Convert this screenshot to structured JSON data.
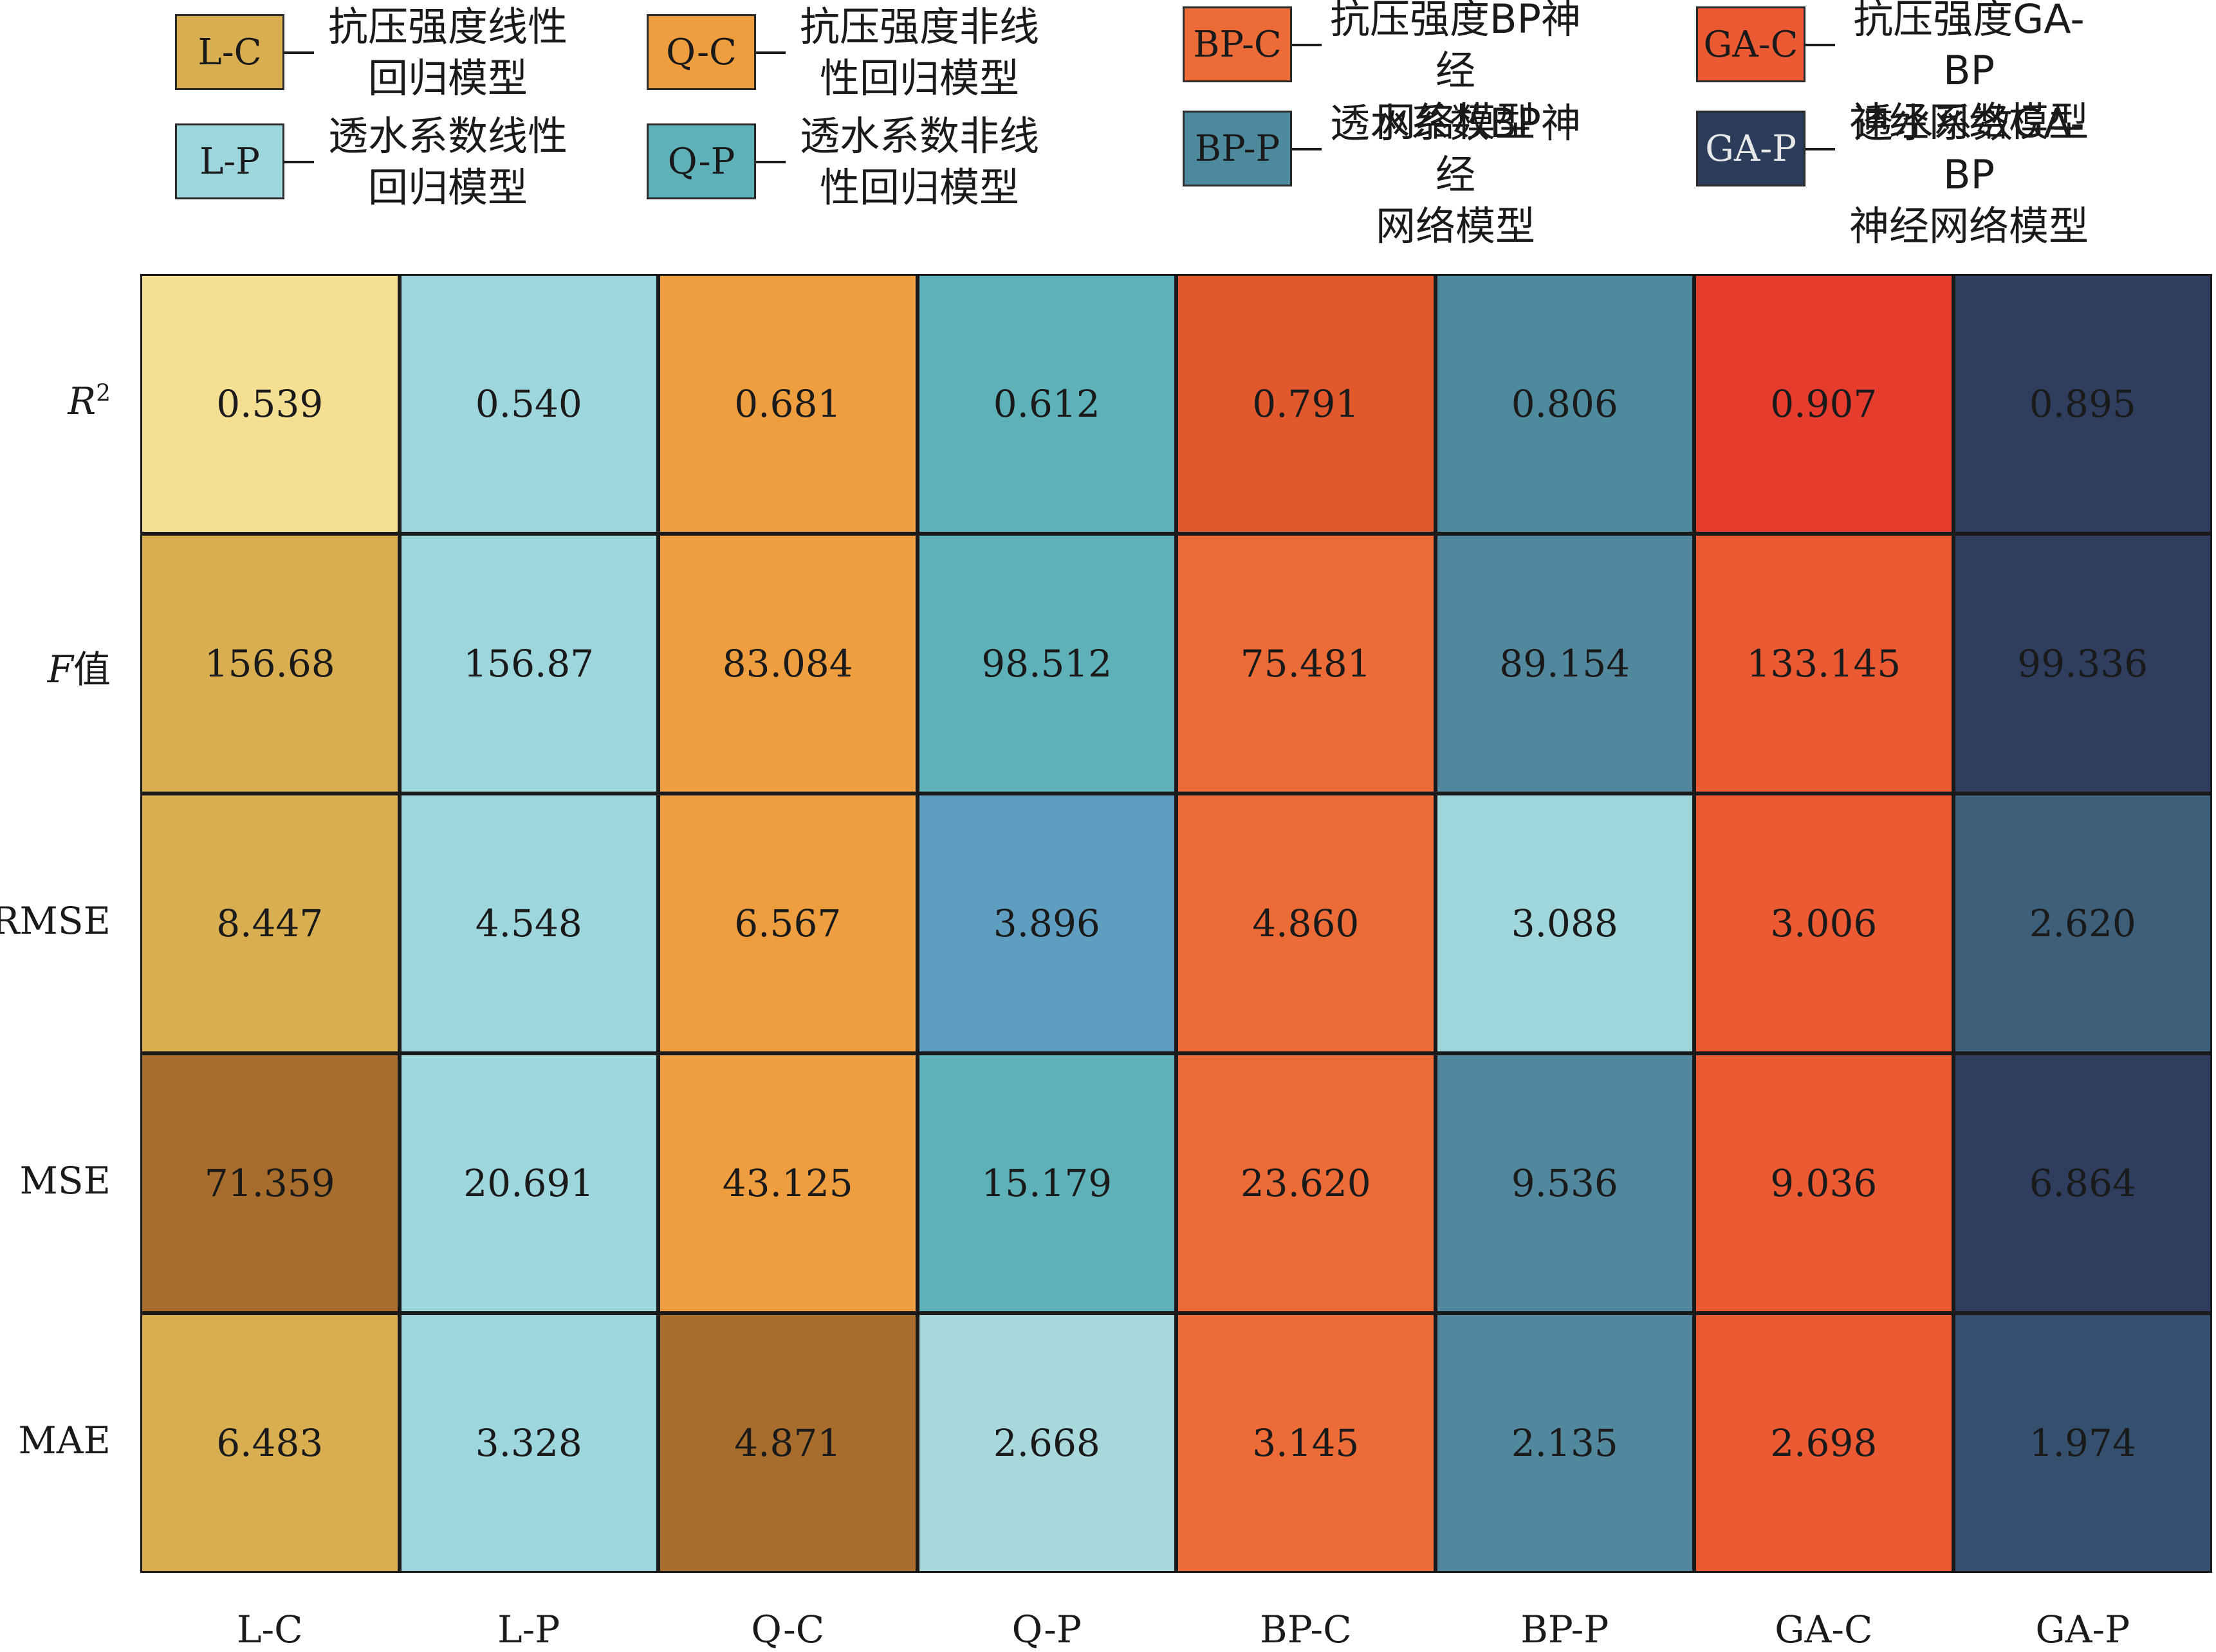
{
  "legend": [
    {
      "code": "L-C",
      "line1": "抗压强度线性",
      "line2": "回归模型",
      "color": "#D9AE50"
    },
    {
      "code": "Q-C",
      "line1": "抗压强度非线",
      "line2": "性回归模型",
      "color": "#EE9E3E"
    },
    {
      "code": "BP-C",
      "line1": "抗压强度BP神经",
      "line2": "网络模型",
      "color": "#EC6B36"
    },
    {
      "code": "GA-C",
      "line1": "抗压强度GA-BP",
      "line2": "神经网络模型",
      "color": "#EB5A33"
    },
    {
      "code": "L-P",
      "line1": "透水系数线性",
      "line2": "回归模型",
      "color": "#9ED6DE"
    },
    {
      "code": "Q-P",
      "line1": "透水系数非线",
      "line2": "性回归模型",
      "color": "#5EB1B8"
    },
    {
      "code": "BP-P",
      "line1": "透水系数BP神经",
      "line2": "网络模型",
      "color": "#4E8A9E"
    },
    {
      "code": "GA-P",
      "line1": "透水系数GA-BP",
      "line2": "神经网络模型",
      "color": "#2C3D5C"
    }
  ],
  "chart_data": {
    "type": "heatmap",
    "columns": [
      "L-C",
      "L-P",
      "Q-C",
      "Q-P",
      "BP-C",
      "BP-P",
      "GA-C",
      "GA-P"
    ],
    "rows": [
      {
        "label_main": "R",
        "label_sup": "2",
        "label_suffix": "",
        "values": [
          "0.539",
          "0.540",
          "0.681",
          "0.612",
          "0.791",
          "0.806",
          "0.907",
          "0.895"
        ]
      },
      {
        "label_main": "F",
        "label_sup": "",
        "label_suffix": "值",
        "values": [
          "156.68",
          "156.87",
          "83.084",
          "98.512",
          "75.481",
          "89.154",
          "133.145",
          "99.336"
        ]
      },
      {
        "label_main": "RMSE",
        "label_sup": "",
        "label_suffix": "",
        "values": [
          "8.447",
          "4.548",
          "6.567",
          "3.896",
          "4.860",
          "3.088",
          "3.006",
          "2.620"
        ]
      },
      {
        "label_main": "MSE",
        "label_sup": "",
        "label_suffix": "",
        "values": [
          "71.359",
          "20.691",
          "43.125",
          "15.179",
          "23.620",
          "9.536",
          "9.036",
          "6.864"
        ]
      },
      {
        "label_main": "MAE",
        "label_sup": "",
        "label_suffix": "",
        "values": [
          "6.483",
          "3.328",
          "4.871",
          "2.668",
          "3.145",
          "2.135",
          "2.698",
          "1.974"
        ]
      }
    ],
    "cell_colors": [
      [
        "#F5DF92",
        "#9ED6DE",
        "#EE9E3E",
        "#5EB1B8",
        "#E0582C",
        "#4E8A9E",
        "#E63C2E",
        "#2F3E5F"
      ],
      [
        "#D9AE50",
        "#9ED6DE",
        "#EE9E3E",
        "#5EB1B8",
        "#EC6B36",
        "#52889E",
        "#EB5A33",
        "#2F3E5F"
      ],
      [
        "#D9AE50",
        "#9ED6DE",
        "#EE9E3E",
        "#5E9EC0",
        "#EC6B36",
        "#9FD6DB",
        "#EB5A33",
        "#3D5F7A"
      ],
      [
        "#A86D2C",
        "#9ED6DE",
        "#EE9E3E",
        "#5EB1B8",
        "#EC6B36",
        "#52889E",
        "#EB5A33",
        "#2F3E5F"
      ],
      [
        "#D9AE50",
        "#9ED6DE",
        "#A86D2C",
        "#A8D8DC",
        "#EC6B36",
        "#52889E",
        "#EB5A33",
        "#34506E"
      ]
    ]
  }
}
